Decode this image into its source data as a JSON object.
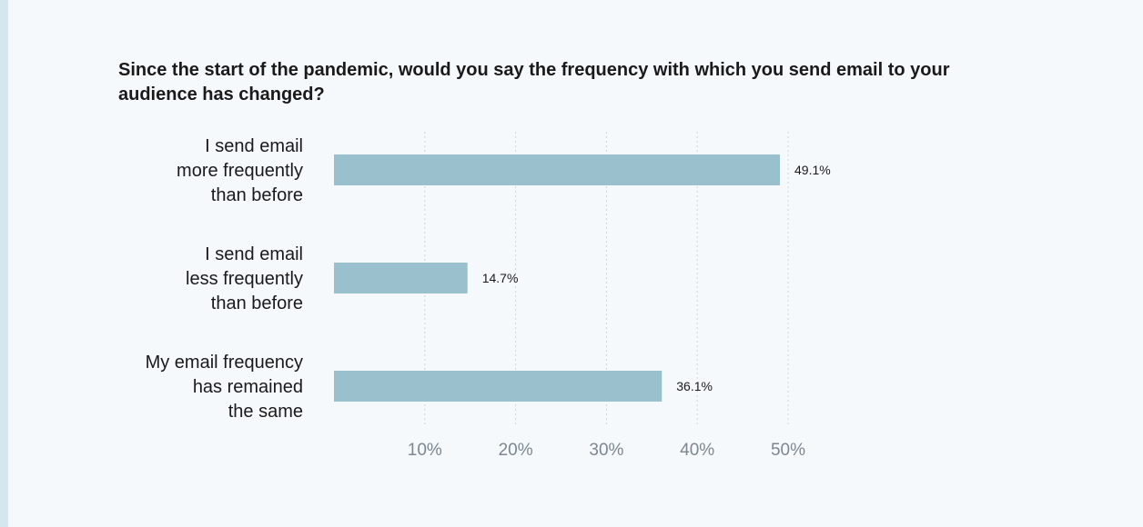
{
  "chart_data": {
    "type": "bar",
    "orientation": "horizontal",
    "title": "Since the start of the pandemic, would you say the frequency with which you send email to your audience has changed?",
    "categories": [
      [
        "I send email",
        "more frequently",
        "than before"
      ],
      [
        "I send email",
        "less frequently",
        "than before"
      ],
      [
        "My email frequency",
        "has remained",
        "the same"
      ]
    ],
    "values": [
      49.1,
      14.7,
      36.1
    ],
    "data_labels": [
      "49.1%",
      "14.7%",
      "36.1%"
    ],
    "x_ticks": [
      10,
      20,
      30,
      40,
      50
    ],
    "x_tick_labels": [
      "10%",
      "20%",
      "30%",
      "40%",
      "50%"
    ],
    "xlim": [
      0,
      50
    ],
    "grid": true,
    "legend": "none",
    "colors": {
      "bar": "#9bc0cd",
      "grid": "#cfd5da",
      "background": "#f6f9fc",
      "accent": "#d5e6ef"
    }
  }
}
